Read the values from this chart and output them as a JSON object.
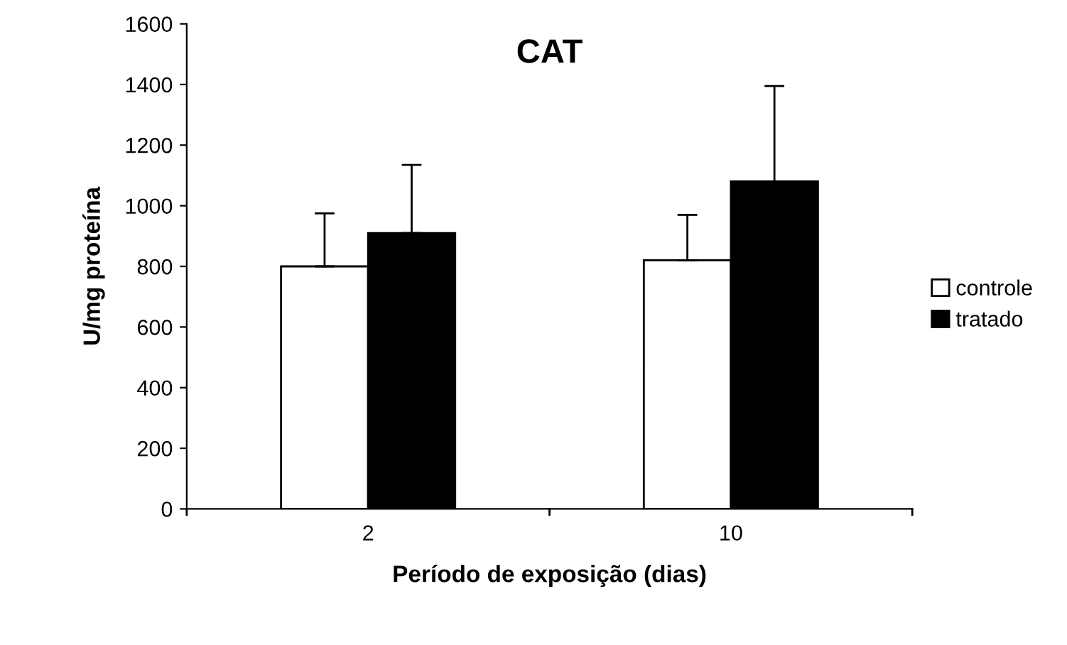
{
  "chart_data": {
    "type": "bar",
    "title": "CAT",
    "xlabel": "Período de exposição (dias)",
    "ylabel": "U/mg proteína",
    "categories": [
      "2",
      "10"
    ],
    "series": [
      {
        "name": "controle",
        "color": "#ffffff",
        "values": [
          800,
          820
        ],
        "errors": [
          [
            800,
            975
          ],
          [
            820,
            970
          ]
        ]
      },
      {
        "name": "tratado",
        "color": "#000000",
        "values": [
          910,
          1080
        ],
        "errors": [
          [
            910,
            1135
          ],
          [
            1080,
            1395
          ]
        ]
      }
    ],
    "ylim": [
      0,
      1600
    ],
    "yticks": [
      0,
      200,
      400,
      600,
      800,
      1000,
      1200,
      1400,
      1600
    ],
    "grid": false,
    "legend": "right"
  }
}
